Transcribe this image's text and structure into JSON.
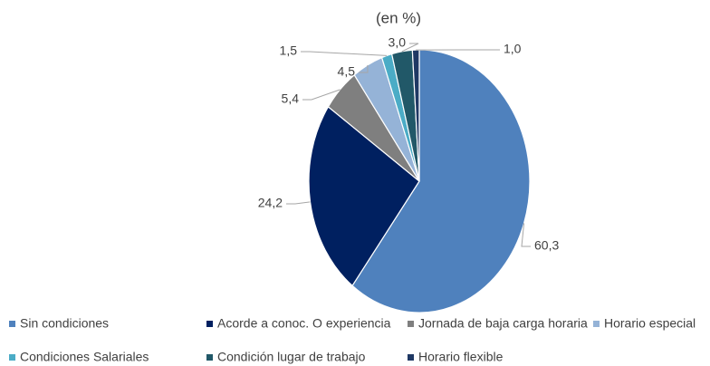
{
  "chart_data": {
    "type": "pie",
    "title": "(en %)",
    "categories": [
      "Sin condiciones",
      "Acorde a conoc. O experiencia",
      "Jornada de baja carga horaria",
      "Horario especial",
      "Condiciones Salariales",
      "Condición lugar de trabajo",
      "Horario flexible"
    ],
    "values": [
      60.3,
      24.2,
      5.4,
      4.5,
      1.5,
      3.0,
      1.0
    ],
    "value_labels": [
      "60,3",
      "24,2",
      "5,4",
      "4,5",
      "1,5",
      "3,0",
      "1,0"
    ],
    "colors": [
      "#4f81bd",
      "#002060",
      "#7f7f7f",
      "#95b3d7",
      "#4bacc6",
      "#215868",
      "#1f3864"
    ],
    "legend": "bottom"
  }
}
